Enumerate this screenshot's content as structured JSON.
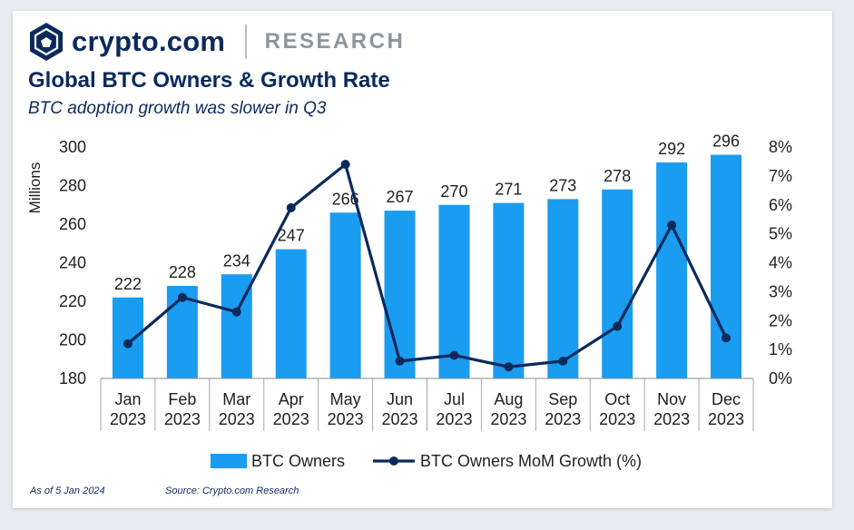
{
  "brand": {
    "name": "crypto.com",
    "section": "RESEARCH",
    "icon": "crypto-com-lion-shield-icon"
  },
  "header": {
    "title": "Global BTC Owners & Growth Rate",
    "subtitle": "BTC adoption growth was slower in Q3"
  },
  "footer": {
    "as_of": "As of 5 Jan 2024",
    "source": "Source: Crypto.com Research"
  },
  "colors": {
    "bar": "#1a9cf0",
    "line": "#0b2a5c",
    "text": "#1f1f1f",
    "brand": "#0b2a5c"
  },
  "chart_data": {
    "type": "bar",
    "categories": [
      "Jan\n2023",
      "Feb\n2023",
      "Mar\n2023",
      "Apr\n2023",
      "May\n2023",
      "Jun\n2023",
      "Jul\n2023",
      "Aug\n2023",
      "Sep\n2023",
      "Oct\n2023",
      "Nov\n2023",
      "Dec\n2023"
    ],
    "series": [
      {
        "name": "BTC Owners",
        "type": "bar",
        "axis": "left",
        "values": [
          222,
          228,
          234,
          247,
          266,
          267,
          270,
          271,
          273,
          278,
          292,
          296
        ]
      },
      {
        "name": "BTC Owners MoM Growth (%)",
        "type": "line",
        "axis": "right",
        "values": [
          1.2,
          2.8,
          2.3,
          5.9,
          7.4,
          0.6,
          0.8,
          0.4,
          0.6,
          1.8,
          5.3,
          1.4
        ]
      }
    ],
    "ylabel": "Millions",
    "ylim": [
      180,
      300
    ],
    "yticks": [
      "180",
      "200",
      "220",
      "240",
      "260",
      "280",
      "300"
    ],
    "y2lim": [
      0,
      8
    ],
    "y2ticks": [
      "0%",
      "1%",
      "2%",
      "3%",
      "4%",
      "5%",
      "6%",
      "7%",
      "8%"
    ],
    "data_labels": true,
    "grid": false,
    "legend": "bottom-center"
  }
}
